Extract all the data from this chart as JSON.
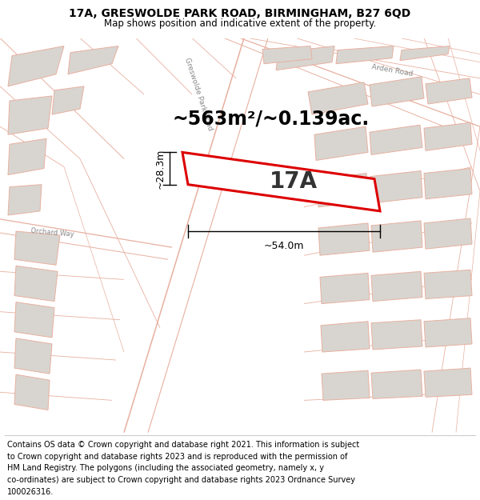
{
  "title_line1": "17A, GRESWOLDE PARK ROAD, BIRMINGHAM, B27 6QD",
  "title_line2": "Map shows position and indicative extent of the property.",
  "area_label": "~563m²/~0.139ac.",
  "property_label": "17A",
  "dim_width": "~54.0m",
  "dim_height": "~28.3m",
  "map_bg": "#f7f5f2",
  "building_fill": "#d8d5d0",
  "building_edge": "#e8b0a0",
  "road_color": "#e8b0a0",
  "highlight_stroke": "#dd0000",
  "title_fontsize": 10,
  "subtitle_fontsize": 8.5,
  "footer_fontsize": 7.0,
  "area_fontsize": 17,
  "label_fontsize": 20,
  "footer_lines": [
    "Contains OS data © Crown copyright and database right 2021. This information is subject",
    "to Crown copyright and database rights 2023 and is reproduced with the permission of",
    "HM Land Registry. The polygons (including the associated geometry, namely x, y",
    "co-ordinates) are subject to Crown copyright and database rights 2023 Ordnance Survey",
    "100026316."
  ]
}
